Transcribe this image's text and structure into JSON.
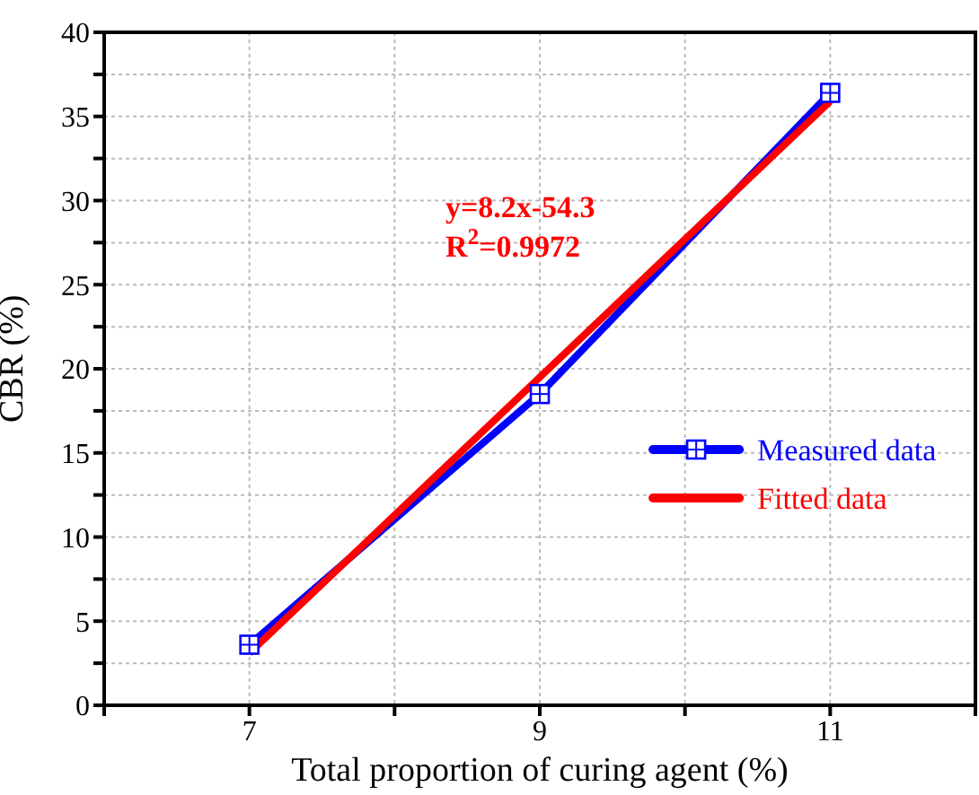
{
  "chart_data": {
    "type": "line",
    "xlabel": "Total proportion of curing agent (%)",
    "ylabel": "CBR (%)",
    "xlim": [
      6,
      12
    ],
    "xticks": [
      {
        "value": 6,
        "label": null
      },
      7,
      {
        "value": 8,
        "label": null
      },
      9,
      {
        "value": 10,
        "label": null
      },
      11,
      {
        "value": 12,
        "label": null
      }
    ],
    "ylim": [
      0,
      40
    ],
    "yticks": [
      0,
      {
        "value": 2.5,
        "label": null
      },
      5,
      {
        "value": 7.5,
        "label": null
      },
      10,
      {
        "value": 12.5,
        "label": null
      },
      15,
      {
        "value": 17.5,
        "label": null
      },
      20,
      {
        "value": 22.5,
        "label": null
      },
      25,
      {
        "value": 27.5,
        "label": null
      },
      30,
      {
        "value": 32.5,
        "label": null
      },
      35,
      {
        "value": 37.5,
        "label": null
      },
      40
    ],
    "x": [
      7,
      9,
      11
    ],
    "series": [
      {
        "name": "Measured data",
        "color": "#0000ff",
        "values": [
          3.6,
          18.5,
          36.4
        ],
        "marker": "square"
      },
      {
        "name": "Fitted data",
        "color": "#ff0000",
        "values": [
          3.1,
          19.5,
          35.9
        ],
        "marker": "none"
      }
    ],
    "annotations": [
      "y=8.2x-54.3",
      "R$^{2}$=0.9972"
    ],
    "grid": true,
    "legend": "right",
    "line_style": "solid"
  }
}
